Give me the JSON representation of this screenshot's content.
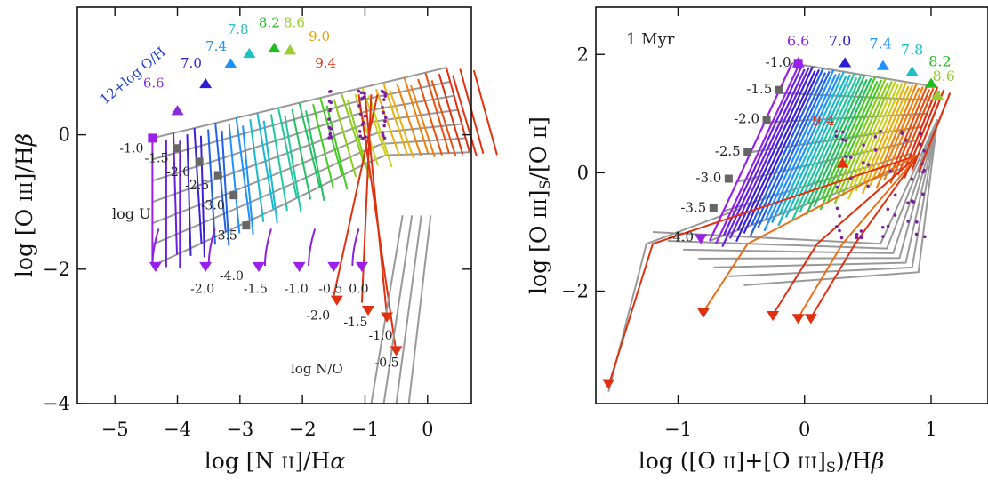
{
  "chart_data": [
    {
      "type": "line",
      "xlabel": "log [N II]/Hα",
      "ylabel": "log [O III]/Hβ",
      "xlim": [
        -5.6,
        0.7
      ],
      "ylim": [
        -4,
        1.9
      ],
      "xticks": [
        -5,
        -4,
        -3,
        -2,
        -1,
        0
      ],
      "yticks": [
        -4,
        -2,
        0
      ],
      "xtick_labels": [
        "−5",
        "−4",
        "−3",
        "−2",
        "−1",
        "0"
      ],
      "ytick_labels": [
        "−4",
        "−2",
        "0"
      ],
      "series_label": "12+log O/H",
      "metallicity_labels": [
        "6.6",
        "7.0",
        "7.4",
        "7.8",
        "8.2",
        "8.6",
        "9.0",
        "9.4"
      ],
      "metallicity_colors": [
        "#8a2be2",
        "#2b1fd0",
        "#1e90ff",
        "#20c0c0",
        "#22bb22",
        "#9acd32",
        "#e8a000",
        "#e03010"
      ],
      "logU_title": "log U",
      "logU_values": [
        "-1.0",
        "-1.5",
        "-2.0",
        "-2.5",
        "-3.0",
        "-3.5",
        "-4.0"
      ],
      "logNO_title": "log N/O",
      "logNO_values": [
        "-2.0",
        "-1.5",
        "-1.0",
        "-0.5",
        "0.0"
      ],
      "logNO_values_red": [
        "-2.0",
        "-1.5",
        "-1.0",
        "-0.5"
      ],
      "grid": false
    },
    {
      "type": "line",
      "xlabel": "log ([O II]+[O III]S)/Hβ",
      "ylabel": "log [O III]S/[O II]",
      "xlim": [
        -1.65,
        1.45
      ],
      "ylim": [
        -3.9,
        2.8
      ],
      "xticks": [
        -1,
        0,
        1
      ],
      "yticks": [
        -2,
        0,
        2
      ],
      "xtick_labels": [
        "−1",
        "0",
        "1"
      ],
      "ytick_labels": [
        "−2",
        "0",
        "2"
      ],
      "annotation": "1 Myr",
      "metallicity_labels": [
        "6.6",
        "7.0",
        "7.4",
        "7.8",
        "8.2",
        "8.6",
        "9.4"
      ],
      "logU_values": [
        "-1.0",
        "-1.5",
        "-2.0",
        "-2.5",
        "-3.0",
        "-3.5",
        "-4.0"
      ],
      "grid": false
    }
  ]
}
